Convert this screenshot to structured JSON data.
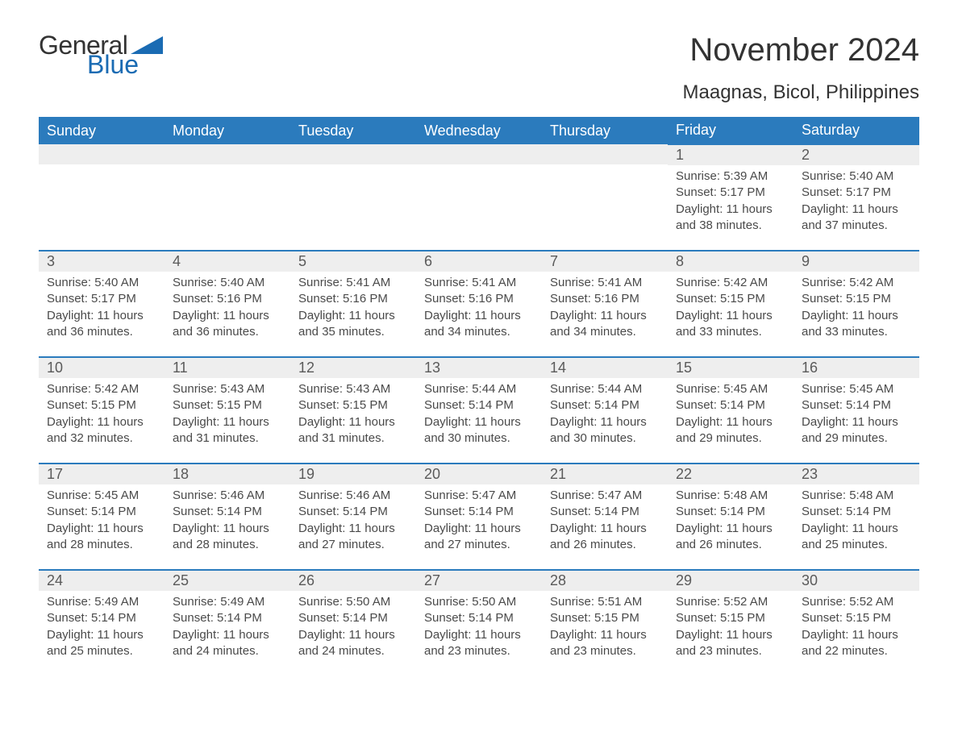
{
  "logo": {
    "text1": "General",
    "text2": "Blue",
    "tri_color": "#1a6bb3"
  },
  "title": "November 2024",
  "location": "Maagnas, Bicol, Philippines",
  "colors": {
    "header_bg": "#2b7bbd",
    "header_fg": "#ffffff",
    "row_border": "#2b7bbd",
    "daynum_bg": "#eeeeee",
    "text": "#333333",
    "blue": "#1a6bb3"
  },
  "day_headers": [
    "Sunday",
    "Monday",
    "Tuesday",
    "Wednesday",
    "Thursday",
    "Friday",
    "Saturday"
  ],
  "weeks": [
    [
      null,
      null,
      null,
      null,
      null,
      {
        "n": "1",
        "sr": "5:39 AM",
        "ss": "5:17 PM",
        "dl": "11 hours and 38 minutes."
      },
      {
        "n": "2",
        "sr": "5:40 AM",
        "ss": "5:17 PM",
        "dl": "11 hours and 37 minutes."
      }
    ],
    [
      {
        "n": "3",
        "sr": "5:40 AM",
        "ss": "5:17 PM",
        "dl": "11 hours and 36 minutes."
      },
      {
        "n": "4",
        "sr": "5:40 AM",
        "ss": "5:16 PM",
        "dl": "11 hours and 36 minutes."
      },
      {
        "n": "5",
        "sr": "5:41 AM",
        "ss": "5:16 PM",
        "dl": "11 hours and 35 minutes."
      },
      {
        "n": "6",
        "sr": "5:41 AM",
        "ss": "5:16 PM",
        "dl": "11 hours and 34 minutes."
      },
      {
        "n": "7",
        "sr": "5:41 AM",
        "ss": "5:16 PM",
        "dl": "11 hours and 34 minutes."
      },
      {
        "n": "8",
        "sr": "5:42 AM",
        "ss": "5:15 PM",
        "dl": "11 hours and 33 minutes."
      },
      {
        "n": "9",
        "sr": "5:42 AM",
        "ss": "5:15 PM",
        "dl": "11 hours and 33 minutes."
      }
    ],
    [
      {
        "n": "10",
        "sr": "5:42 AM",
        "ss": "5:15 PM",
        "dl": "11 hours and 32 minutes."
      },
      {
        "n": "11",
        "sr": "5:43 AM",
        "ss": "5:15 PM",
        "dl": "11 hours and 31 minutes."
      },
      {
        "n": "12",
        "sr": "5:43 AM",
        "ss": "5:15 PM",
        "dl": "11 hours and 31 minutes."
      },
      {
        "n": "13",
        "sr": "5:44 AM",
        "ss": "5:14 PM",
        "dl": "11 hours and 30 minutes."
      },
      {
        "n": "14",
        "sr": "5:44 AM",
        "ss": "5:14 PM",
        "dl": "11 hours and 30 minutes."
      },
      {
        "n": "15",
        "sr": "5:45 AM",
        "ss": "5:14 PM",
        "dl": "11 hours and 29 minutes."
      },
      {
        "n": "16",
        "sr": "5:45 AM",
        "ss": "5:14 PM",
        "dl": "11 hours and 29 minutes."
      }
    ],
    [
      {
        "n": "17",
        "sr": "5:45 AM",
        "ss": "5:14 PM",
        "dl": "11 hours and 28 minutes."
      },
      {
        "n": "18",
        "sr": "5:46 AM",
        "ss": "5:14 PM",
        "dl": "11 hours and 28 minutes."
      },
      {
        "n": "19",
        "sr": "5:46 AM",
        "ss": "5:14 PM",
        "dl": "11 hours and 27 minutes."
      },
      {
        "n": "20",
        "sr": "5:47 AM",
        "ss": "5:14 PM",
        "dl": "11 hours and 27 minutes."
      },
      {
        "n": "21",
        "sr": "5:47 AM",
        "ss": "5:14 PM",
        "dl": "11 hours and 26 minutes."
      },
      {
        "n": "22",
        "sr": "5:48 AM",
        "ss": "5:14 PM",
        "dl": "11 hours and 26 minutes."
      },
      {
        "n": "23",
        "sr": "5:48 AM",
        "ss": "5:14 PM",
        "dl": "11 hours and 25 minutes."
      }
    ],
    [
      {
        "n": "24",
        "sr": "5:49 AM",
        "ss": "5:14 PM",
        "dl": "11 hours and 25 minutes."
      },
      {
        "n": "25",
        "sr": "5:49 AM",
        "ss": "5:14 PM",
        "dl": "11 hours and 24 minutes."
      },
      {
        "n": "26",
        "sr": "5:50 AM",
        "ss": "5:14 PM",
        "dl": "11 hours and 24 minutes."
      },
      {
        "n": "27",
        "sr": "5:50 AM",
        "ss": "5:14 PM",
        "dl": "11 hours and 23 minutes."
      },
      {
        "n": "28",
        "sr": "5:51 AM",
        "ss": "5:15 PM",
        "dl": "11 hours and 23 minutes."
      },
      {
        "n": "29",
        "sr": "5:52 AM",
        "ss": "5:15 PM",
        "dl": "11 hours and 23 minutes."
      },
      {
        "n": "30",
        "sr": "5:52 AM",
        "ss": "5:15 PM",
        "dl": "11 hours and 22 minutes."
      }
    ]
  ],
  "labels": {
    "sunrise": "Sunrise: ",
    "sunset": "Sunset: ",
    "daylight": "Daylight: "
  }
}
